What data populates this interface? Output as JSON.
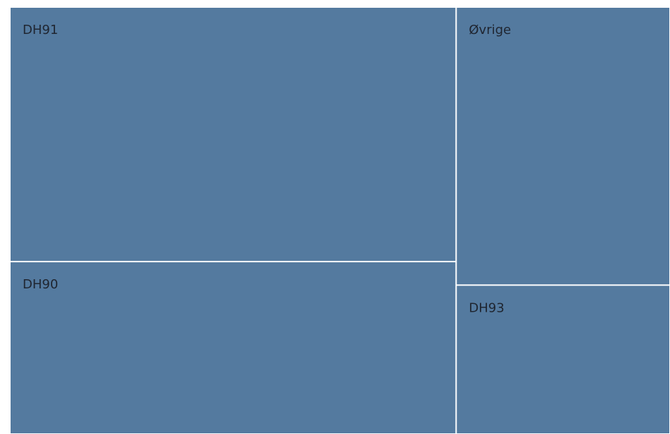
{
  "chart_data": {
    "type": "treemap",
    "categories": [
      "DH91",
      "DH90",
      "Øvrige",
      "DH93"
    ],
    "values": [
      40.3,
      27.3,
      21.1,
      11.3
    ],
    "color": "#547a9f"
  }
}
